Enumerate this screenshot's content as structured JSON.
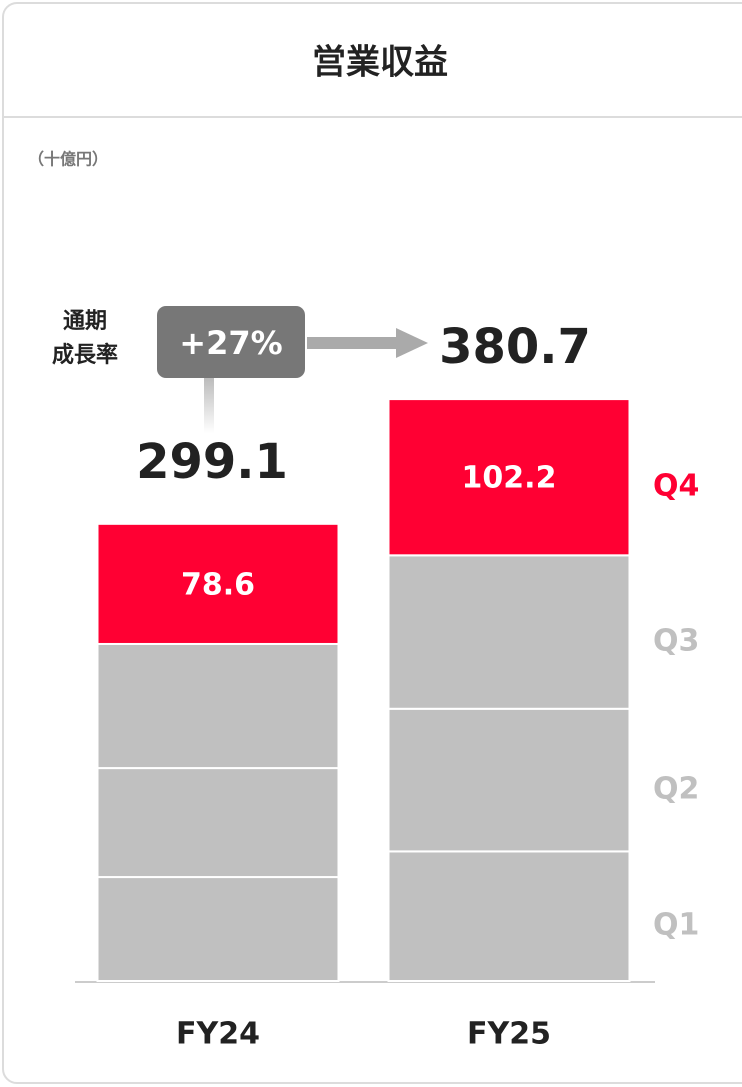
{
  "chart_data": {
    "type": "bar",
    "stacked": true,
    "title": "営業収益",
    "unit_label": "（十億円）",
    "categories": [
      "FY24",
      "FY25"
    ],
    "series": [
      {
        "name": "Q1",
        "color": "#c0c0c0",
        "values": [
          68.0,
          84.8
        ]
      },
      {
        "name": "Q2",
        "color": "#c0c0c0",
        "values": [
          71.3,
          93.3
        ]
      },
      {
        "name": "Q3",
        "color": "#c0c0c0",
        "values": [
          81.2,
          100.4
        ]
      },
      {
        "name": "Q4",
        "color": "#ff0033",
        "values": [
          78.6,
          102.2
        ],
        "show_labels": true
      }
    ],
    "totals": [
      299.1,
      380.7
    ],
    "growth": {
      "label_lines": [
        "通期",
        "成長率"
      ],
      "value_label": "+27%"
    }
  }
}
